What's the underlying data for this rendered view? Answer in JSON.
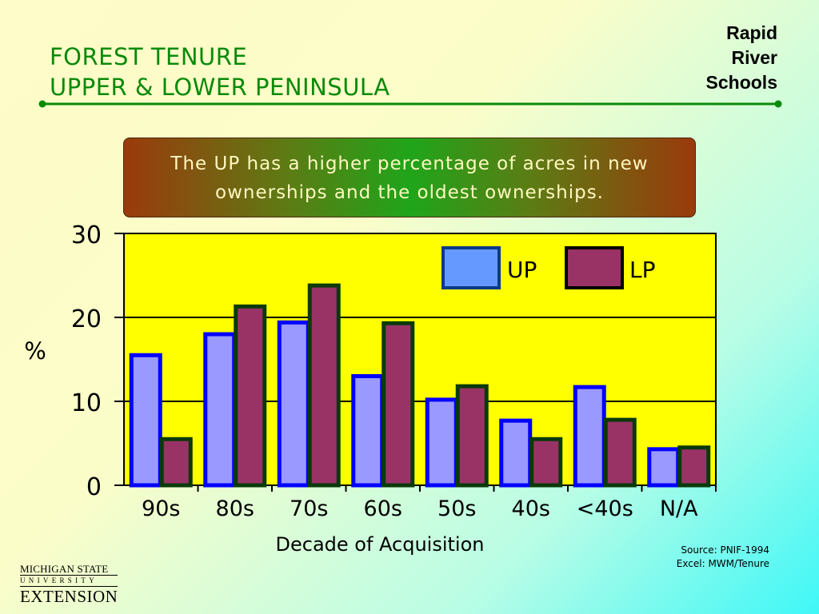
{
  "slide": {
    "title_line1": "FOREST TENURE",
    "title_line2": "UPPER & LOWER PENINSULA",
    "brand_line1": "Rapid",
    "brand_line2": "River",
    "brand_line3": "Schools",
    "callout": "The UP has a higher percentage of acres in new ownerships and the oldest ownerships.",
    "source_line1": "Source:  PNIF-1994",
    "source_line2": "Excel:  MWM/Tenure",
    "logo_line1": "MICHIGAN STATE",
    "logo_line2": "UNIVERSITY",
    "logo_line3": "EXTENSION"
  },
  "colors": {
    "title": "#0a8a0a",
    "plot_bg": "#ffff00",
    "up_fill": "#9999ff",
    "up_border": "#0000ff",
    "lp_fill": "#993366",
    "lp_border": "#0a3a0a"
  },
  "chart_data": {
    "type": "bar",
    "categories": [
      "90s",
      "80s",
      "70s",
      "60s",
      "50s",
      "40s",
      "<40s",
      "N/A"
    ],
    "series": [
      {
        "name": "UP",
        "values": [
          15.5,
          18,
          19.4,
          13,
          10.2,
          7.7,
          11.7,
          4.3
        ]
      },
      {
        "name": "LP",
        "values": [
          5.5,
          21.3,
          23.8,
          19.3,
          11.8,
          5.5,
          7.8,
          4.5
        ]
      }
    ],
    "xlabel": "Decade of Acquisition",
    "ylabel": "%",
    "ylim": [
      0,
      30
    ],
    "yticks": [
      0,
      10,
      20,
      30
    ],
    "grid": true,
    "legend_position": "top-right"
  }
}
